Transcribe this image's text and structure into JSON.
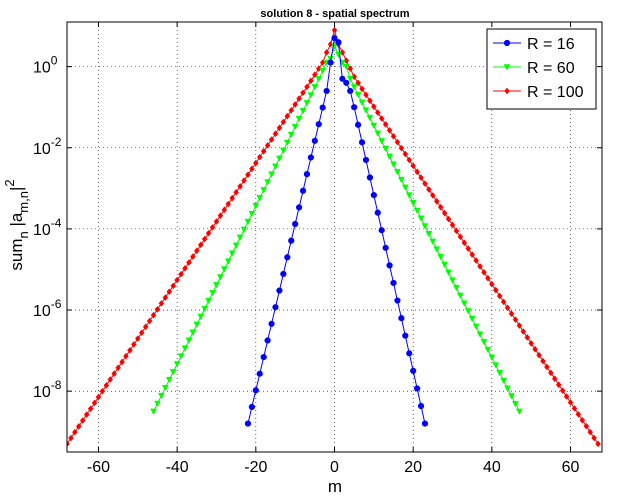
{
  "chart_data": {
    "type": "line",
    "title": "solution 8 - spatial spectrum",
    "xlabel": "m",
    "ylabel": "sum_n |a_m,n|^2",
    "xlim": [
      -68,
      68
    ],
    "ylim_exp": [
      -9.5,
      1.1
    ],
    "y_scale": "log",
    "x_ticks": [
      -60,
      -40,
      -20,
      0,
      20,
      40,
      60
    ],
    "x_tick_labels": [
      "-60",
      "-40",
      "-20",
      "0",
      "20",
      "40",
      "60"
    ],
    "y_tick_exponents": [
      0,
      -2,
      -4,
      -6,
      -8
    ],
    "y_tick_labels": [
      "10",
      "10",
      "10",
      "10",
      "10"
    ],
    "y_tick_label_exponents": [
      "0",
      "-2",
      "-4",
      "-6",
      "-8"
    ],
    "grid": true,
    "legend_position": "top-right",
    "series": [
      {
        "name": "R = 16",
        "color": "#0000ff",
        "marker": "circle",
        "m_range": [
          -22,
          23
        ],
        "outer_log10_at_edge": -8.8,
        "core_log10": {
          "-2": -0.6,
          "-1": 0.1,
          "0": 0.7,
          "1": 0.6,
          "2": -0.3,
          "3": -0.4,
          "4": -0.6,
          "5": -1.0
        }
      },
      {
        "name": "R = 60",
        "color": "#00ff00",
        "marker": "triangle-down",
        "m_range": [
          -46,
          47
        ],
        "outer_log10_at_edge": -8.5,
        "core_log10": {
          "-6": -0.7,
          "-5": -0.5,
          "-4": -0.3,
          "-3": -0.1,
          "-2": 0.1,
          "-1": 0.2,
          "0": 0.5,
          "1": 0.3,
          "2": 0.1,
          "3": 0.0,
          "4": -0.3,
          "5": -0.5
        }
      },
      {
        "name": "R = 100",
        "color": "#ff0000",
        "marker": "diamond",
        "m_range": [
          -68,
          67
        ],
        "outer_log10_at_edge": -9.3,
        "core_log10": {
          "-7": -0.5,
          "-6": -0.35,
          "-5": -0.2,
          "-4": -0.05,
          "-3": 0.1,
          "-2": 0.35,
          "-1": 0.55,
          "0": 0.9,
          "1": 0.55,
          "2": 0.35,
          "3": 0.15,
          "4": -0.05,
          "5": -0.25,
          "6": -0.4,
          "7": -0.55
        }
      }
    ]
  }
}
